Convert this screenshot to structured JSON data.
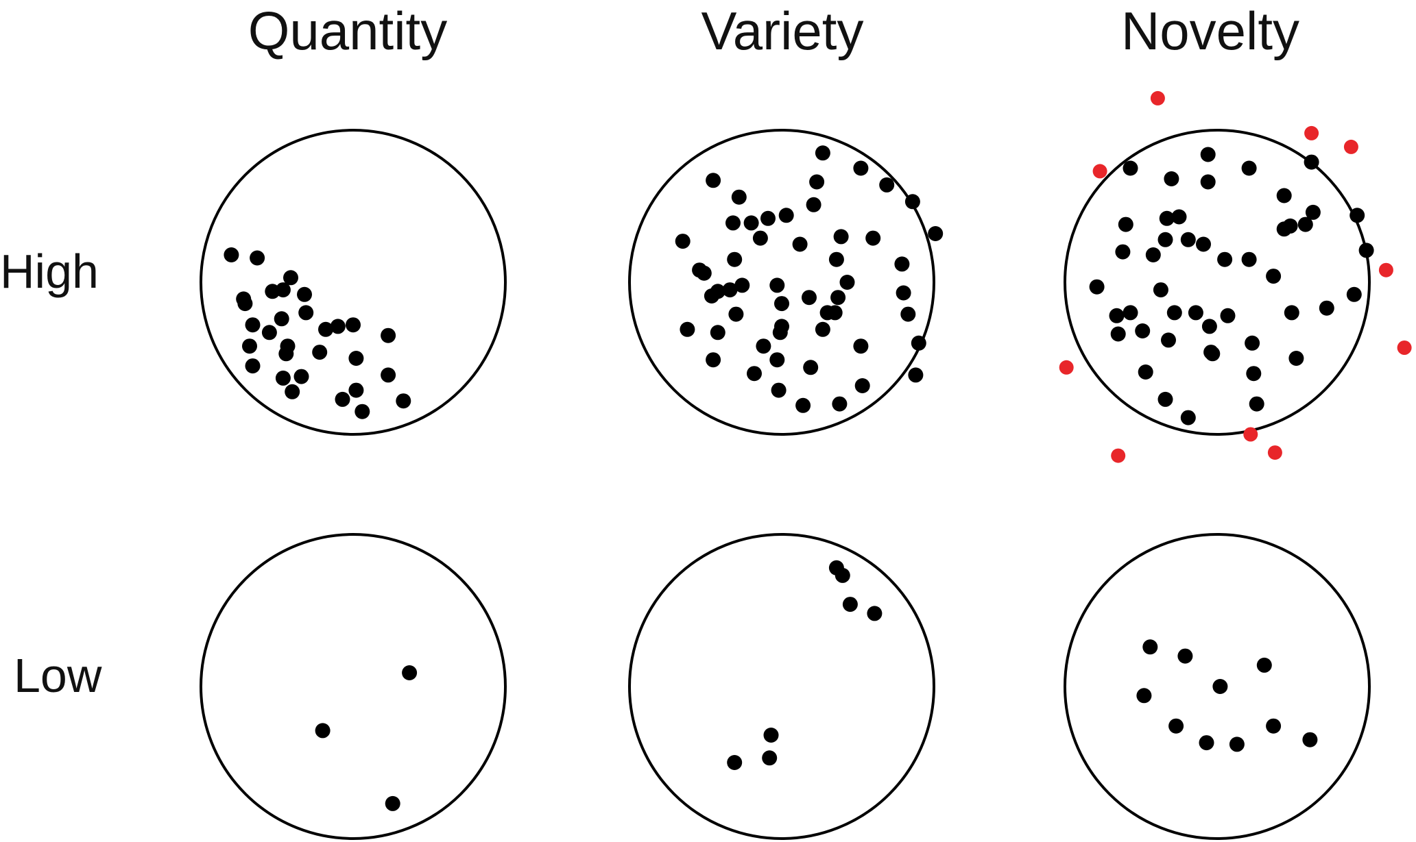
{
  "columns": [
    "Quantity",
    "Variety",
    "Novelty"
  ],
  "rows": [
    "High",
    "Low"
  ],
  "colors": {
    "dot": "#000000",
    "outlier": "#e8262a",
    "circle_stroke": "#000000"
  },
  "panels": [
    {
      "column": "Quantity",
      "row": "High",
      "dots": [
        [
          -0.8,
          -0.18
        ],
        [
          -0.63,
          -0.16
        ],
        [
          -0.72,
          0.11
        ],
        [
          -0.71,
          0.14
        ],
        [
          -0.53,
          0.06
        ],
        [
          -0.46,
          0.05
        ],
        [
          -0.41,
          -0.03
        ],
        [
          -0.32,
          0.08
        ],
        [
          -0.66,
          0.28
        ],
        [
          -0.55,
          0.33
        ],
        [
          -0.47,
          0.24
        ],
        [
          -0.31,
          0.2
        ],
        [
          -0.18,
          0.31
        ],
        [
          -0.1,
          0.29
        ],
        [
          -0.68,
          0.42
        ],
        [
          -0.43,
          0.42
        ],
        [
          -0.44,
          0.47
        ],
        [
          -0.66,
          0.55
        ],
        [
          -0.46,
          0.63
        ],
        [
          -0.34,
          0.62
        ],
        [
          -0.4,
          0.72
        ],
        [
          -0.22,
          0.46
        ],
        [
          -0.07,
          0.77
        ],
        [
          0.0,
          0.28
        ],
        [
          0.02,
          0.5
        ],
        [
          0.02,
          0.71
        ],
        [
          0.06,
          0.85
        ],
        [
          0.23,
          0.35
        ],
        [
          0.23,
          0.61
        ],
        [
          0.33,
          0.78
        ]
      ]
    },
    {
      "column": "Variety",
      "row": "High",
      "dots": [
        [
          0.27,
          -0.85
        ],
        [
          -0.45,
          -0.67
        ],
        [
          0.52,
          -0.75
        ],
        [
          0.69,
          -0.64
        ],
        [
          0.23,
          -0.66
        ],
        [
          -0.28,
          -0.56
        ],
        [
          0.21,
          -0.51
        ],
        [
          0.86,
          -0.53
        ],
        [
          -0.32,
          -0.39
        ],
        [
          -0.2,
          -0.39
        ],
        [
          -0.09,
          -0.42
        ],
        [
          0.03,
          -0.44
        ],
        [
          -0.14,
          -0.29
        ],
        [
          0.12,
          -0.25
        ],
        [
          0.39,
          -0.3
        ],
        [
          0.6,
          -0.29
        ],
        [
          1.01,
          -0.32
        ],
        [
          -0.65,
          -0.27
        ],
        [
          -0.54,
          -0.08
        ],
        [
          -0.31,
          -0.15
        ],
        [
          0.36,
          -0.15
        ],
        [
          0.79,
          -0.12
        ],
        [
          -0.51,
          -0.06
        ],
        [
          -0.46,
          0.09
        ],
        [
          -0.42,
          0.06
        ],
        [
          -0.34,
          0.05
        ],
        [
          -0.26,
          0.02
        ],
        [
          -0.03,
          0.02
        ],
        [
          0.18,
          0.1
        ],
        [
          0.43,
          0.0
        ],
        [
          0.37,
          0.1
        ],
        [
          0.8,
          0.07
        ],
        [
          -0.3,
          0.21
        ],
        [
          0.0,
          0.14
        ],
        [
          0.3,
          0.2
        ],
        [
          0.35,
          0.2
        ],
        [
          0.83,
          0.21
        ],
        [
          -0.62,
          0.31
        ],
        [
          -0.42,
          0.33
        ],
        [
          0.0,
          0.29
        ],
        [
          -0.01,
          0.33
        ],
        [
          0.27,
          0.31
        ],
        [
          0.52,
          0.42
        ],
        [
          0.9,
          0.4
        ],
        [
          -0.12,
          0.42
        ],
        [
          -0.03,
          0.51
        ],
        [
          -0.45,
          0.51
        ],
        [
          -0.18,
          0.6
        ],
        [
          0.19,
          0.56
        ],
        [
          0.88,
          0.61
        ],
        [
          -0.02,
          0.71
        ],
        [
          0.53,
          0.68
        ],
        [
          0.14,
          0.81
        ],
        [
          0.38,
          0.8
        ]
      ]
    },
    {
      "column": "Novelty",
      "row": "High",
      "dots": [
        [
          -0.57,
          -0.75
        ],
        [
          -0.3,
          -0.68
        ],
        [
          -0.06,
          -0.84
        ],
        [
          0.21,
          -0.75
        ],
        [
          0.62,
          -0.79
        ],
        [
          -0.06,
          -0.66
        ],
        [
          0.44,
          -0.57
        ],
        [
          0.92,
          -0.44
        ],
        [
          -0.6,
          -0.38
        ],
        [
          -0.33,
          -0.42
        ],
        [
          -0.25,
          -0.43
        ],
        [
          0.44,
          -0.35
        ],
        [
          0.48,
          -0.37
        ],
        [
          0.58,
          -0.38
        ],
        [
          0.63,
          -0.46
        ],
        [
          -0.62,
          -0.2
        ],
        [
          -0.42,
          -0.18
        ],
        [
          -0.34,
          -0.28
        ],
        [
          -0.19,
          -0.28
        ],
        [
          -0.09,
          -0.25
        ],
        [
          0.05,
          -0.15
        ],
        [
          0.21,
          -0.15
        ],
        [
          0.98,
          -0.21
        ],
        [
          0.37,
          -0.04
        ],
        [
          -0.79,
          0.03
        ],
        [
          -0.37,
          0.05
        ],
        [
          -0.57,
          0.2
        ],
        [
          -0.66,
          0.22
        ],
        [
          -0.28,
          0.2
        ],
        [
          -0.14,
          0.2
        ],
        [
          0.07,
          0.22
        ],
        [
          0.49,
          0.2
        ],
        [
          0.72,
          0.17
        ],
        [
          0.9,
          0.08
        ],
        [
          -0.65,
          0.34
        ],
        [
          -0.49,
          0.32
        ],
        [
          -0.32,
          0.38
        ],
        [
          -0.05,
          0.29
        ],
        [
          0.23,
          0.4
        ],
        [
          0.52,
          0.5
        ],
        [
          -0.47,
          0.59
        ],
        [
          -0.34,
          0.77
        ],
        [
          -0.19,
          0.89
        ],
        [
          0.26,
          0.8
        ],
        [
          0.24,
          0.6
        ],
        [
          -0.03,
          0.47
        ],
        [
          -0.04,
          0.46
        ]
      ],
      "outliers": [
        [
          -0.39,
          -1.21
        ],
        [
          0.62,
          -0.98
        ],
        [
          0.88,
          -0.89
        ],
        [
          -0.77,
          -0.73
        ],
        [
          1.11,
          -0.08
        ],
        [
          1.23,
          0.43
        ],
        [
          -0.99,
          0.56
        ],
        [
          0.22,
          1.0
        ],
        [
          0.38,
          1.12
        ],
        [
          -0.65,
          1.14
        ]
      ]
    },
    {
      "column": "Quantity",
      "row": "Low",
      "dots": [
        [
          0.37,
          -0.09
        ],
        [
          -0.2,
          0.29
        ],
        [
          0.26,
          0.77
        ]
      ]
    },
    {
      "column": "Variety",
      "row": "Low",
      "dots": [
        [
          0.36,
          -0.78
        ],
        [
          0.4,
          -0.73
        ],
        [
          0.45,
          -0.54
        ],
        [
          0.61,
          -0.48
        ],
        [
          -0.07,
          0.32
        ],
        [
          -0.08,
          0.47
        ],
        [
          -0.31,
          0.5
        ]
      ]
    },
    {
      "column": "Novelty",
      "row": "Low",
      "dots": [
        [
          -0.44,
          -0.26
        ],
        [
          -0.21,
          -0.2
        ],
        [
          0.31,
          -0.14
        ],
        [
          0.02,
          0.0
        ],
        [
          -0.48,
          0.06
        ],
        [
          -0.27,
          0.26
        ],
        [
          0.37,
          0.26
        ],
        [
          -0.07,
          0.37
        ],
        [
          0.13,
          0.38
        ],
        [
          0.61,
          0.35
        ]
      ]
    }
  ]
}
